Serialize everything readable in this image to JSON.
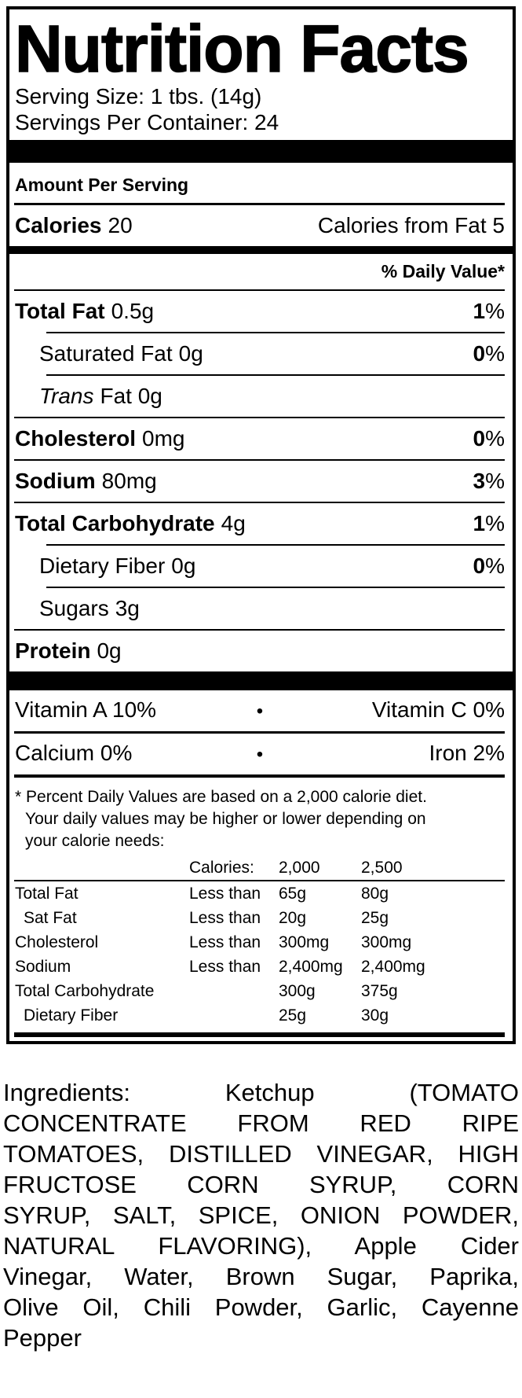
{
  "colors": {
    "ink": "#000000",
    "paper": "#ffffff"
  },
  "label": {
    "title": "Nutrition Facts",
    "serving_size": "Serving Size: 1 tbs. (14g)",
    "servings_per_container": "Servings Per Container: 24",
    "amount_per_serving": "Amount Per Serving",
    "calories": {
      "label": "Calories",
      "value": "20",
      "from_fat": "Calories from Fat 5"
    },
    "daily_value_header": "% Daily Value*",
    "nutrients": [
      {
        "label": "Total Fat",
        "amount": "0.5g",
        "dv": "1",
        "pct": "%"
      },
      {
        "label": "Saturated Fat",
        "amount": "0g",
        "dv": "0",
        "pct": "%"
      },
      {
        "label": "Trans",
        "amount": "Fat 0g"
      },
      {
        "label": "Cholesterol",
        "amount": "0mg",
        "dv": "0",
        "pct": "%"
      },
      {
        "label": "Sodium",
        "amount": "80mg",
        "dv": "3",
        "pct": "%"
      },
      {
        "label": "Total Carbohydrate",
        "amount": "4g",
        "dv": "1",
        "pct": "%"
      },
      {
        "label": "Dietary Fiber",
        "amount": "0g",
        "dv": "0",
        "pct": "%"
      },
      {
        "label": "Sugars",
        "amount": "3g"
      },
      {
        "label": "Protein",
        "amount": "0g"
      }
    ],
    "vitamins": [
      {
        "left": "Vitamin A 10%",
        "sep": "•",
        "right": "Vitamin C 0%"
      },
      {
        "left": "Calcium 0%",
        "sep": "•",
        "right": "Iron 2%"
      }
    ],
    "footnote_lines": [
      "* Percent Daily Values are based on a 2,000 calorie diet.",
      "Your daily values may be higher or lower depending on",
      "your calorie needs:"
    ],
    "footnote_table": {
      "header": {
        "c2": "Calories:",
        "c3": "2,000",
        "c4": "2,500"
      },
      "rows": [
        {
          "label": "Total Fat",
          "q": "Less than",
          "v1": "65g",
          "v2": "80g"
        },
        {
          "label": "Sat Fat",
          "q": "Less than",
          "v1": "20g",
          "v2": "25g"
        },
        {
          "label": "Cholesterol",
          "q": "Less than",
          "v1": "300mg",
          "v2": "300mg"
        },
        {
          "label": "Sodium",
          "q": "Less than",
          "v1": "2,400mg",
          "v2": "2,400mg"
        },
        {
          "label": "Total Carbohydrate",
          "v1": "300g",
          "v2": "375g"
        },
        {
          "label": "Dietary Fiber",
          "v1": "25g",
          "v2": "30g"
        }
      ]
    }
  },
  "ingredients": {
    "lines": [
      "Ingredients: Ketchup (TOMATO",
      "CONCENTRATE FROM RED RIPE",
      "TOMATOES, DISTILLED VINEGAR, HIGH",
      "FRUCTOSE CORN SYRUP, CORN",
      "SYRUP, SALT, SPICE, ONION POWDER,",
      "NATURAL FLAVORING), Apple Cider",
      "Vinegar, Water, Brown Sugar, Paprika,",
      "Olive Oil, Chili Powder, Garlic, Cayenne",
      "Pepper"
    ]
  }
}
